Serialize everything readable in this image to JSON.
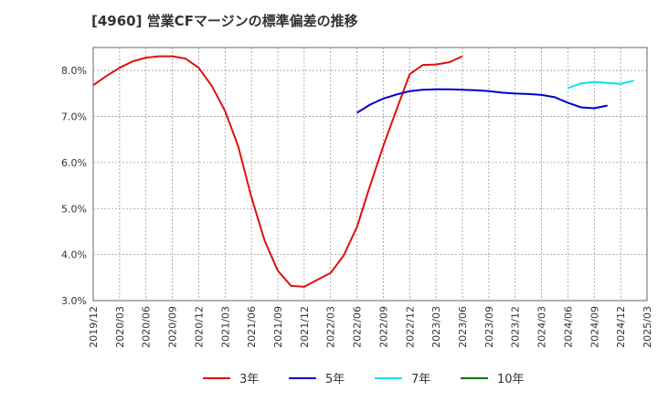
{
  "chart_data": {
    "type": "line",
    "title": "[4960]  営業CFマージンの標準偏差の推移",
    "xlabel": "",
    "ylabel": "",
    "x_ticks": [
      "2019/12",
      "2020/03",
      "2020/06",
      "2020/09",
      "2020/12",
      "2021/03",
      "2021/06",
      "2021/09",
      "2021/12",
      "2022/03",
      "2022/06",
      "2022/09",
      "2022/12",
      "2023/03",
      "2023/06",
      "2023/09",
      "2023/12",
      "2024/03",
      "2024/06",
      "2024/09",
      "2024/12",
      "2025/03"
    ],
    "y_ticks": [
      "3.0%",
      "4.0%",
      "5.0%",
      "6.0%",
      "7.0%",
      "8.0%"
    ],
    "ylim": [
      3.0,
      8.5
    ],
    "grid": true,
    "legend_position": "bottom",
    "series": [
      {
        "name": "3年",
        "color": "#dd1111",
        "start_index": 0,
        "values": [
          7.68,
          7.88,
          8.06,
          8.2,
          8.28,
          8.31,
          8.31,
          8.26,
          8.06,
          7.66,
          7.12,
          6.35,
          5.25,
          4.3,
          3.65,
          3.32,
          3.3,
          3.45,
          3.6,
          3.98,
          4.6,
          5.5,
          6.36,
          7.15,
          7.92,
          8.12,
          8.13,
          8.18,
          8.31
        ]
      },
      {
        "name": "5年",
        "color": "#0000cc",
        "start_index": 20,
        "values": [
          7.08,
          7.26,
          7.39,
          7.48,
          7.55,
          7.58,
          7.59,
          7.59,
          7.58,
          7.57,
          7.55,
          7.52,
          7.5,
          7.49,
          7.47,
          7.42,
          7.3,
          7.2,
          7.18,
          7.24
        ]
      },
      {
        "name": "7年",
        "color": "#00e5ee",
        "start_index": 36,
        "values": [
          7.62,
          7.72,
          7.75,
          7.73,
          7.71,
          7.78
        ]
      },
      {
        "name": "10年",
        "color": "#007700",
        "start_index": 0,
        "values": []
      }
    ]
  }
}
